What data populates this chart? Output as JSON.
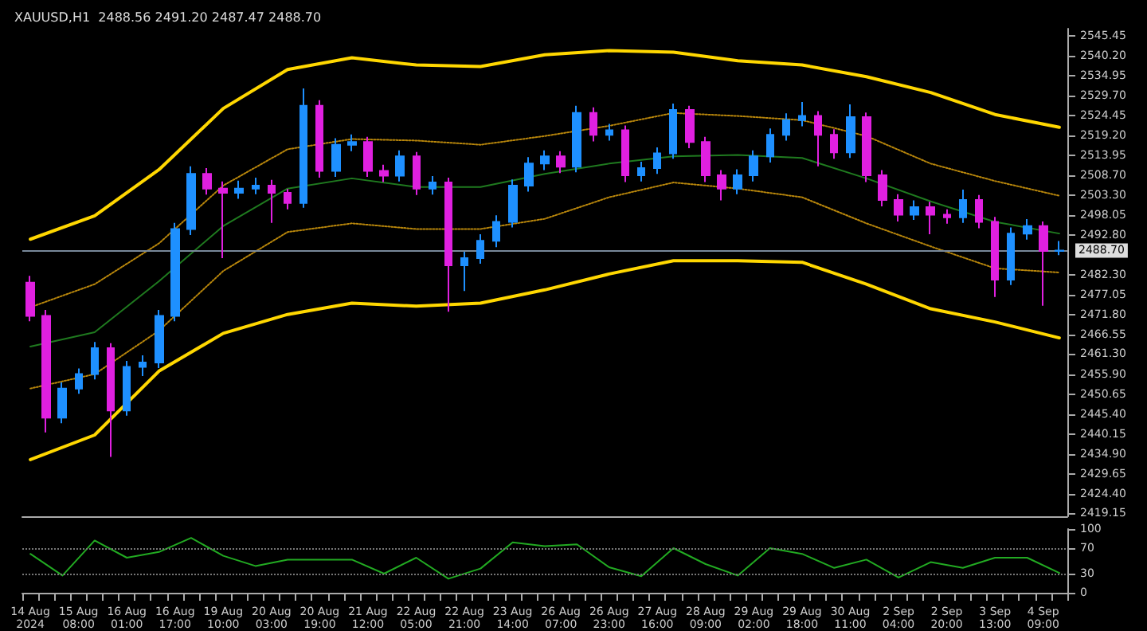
{
  "chart_data": [
    {
      "type": "candlestick",
      "title": "XAUUSD,H1  2488.56 2491.20 2487.47 2488.70",
      "categories": [
        null,
        null,
        null,
        null,
        null,
        null,
        null,
        null,
        null,
        null,
        null,
        null,
        null,
        null,
        null,
        null,
        null,
        null,
        null,
        null,
        null,
        null,
        null,
        null,
        null,
        null,
        null,
        null,
        null,
        null,
        null,
        null,
        null,
        null,
        null,
        null,
        null,
        null,
        null,
        null,
        null,
        null,
        null,
        null,
        null,
        null,
        null,
        null,
        null,
        null,
        null,
        null,
        null,
        null,
        null,
        null,
        null,
        null,
        null,
        null,
        null,
        null,
        null,
        null,
        null
      ],
      "ohlc": [
        [
          2480.2,
          2482.0,
          2470.0,
          2471.4
        ],
        [
          2471.4,
          2473.0,
          2440.6,
          2444.5
        ],
        [
          2444.5,
          2453.8,
          2443.0,
          2452.2
        ],
        [
          2452.2,
          2457.5,
          2450.8,
          2456.0
        ],
        [
          2456.0,
          2464.5,
          2454.6,
          2462.9
        ],
        [
          2462.9,
          2464.2,
          2434.1,
          2446.4
        ],
        [
          2446.4,
          2459.5,
          2445.0,
          2457.9
        ],
        [
          2457.9,
          2461.0,
          2455.5,
          2459.1
        ],
        [
          2459.1,
          2473.0,
          2457.6,
          2471.4
        ],
        [
          2471.4,
          2496.0,
          2470.0,
          2494.4
        ],
        [
          2494.4,
          2511.0,
          2492.8,
          2509.0
        ],
        [
          2509.0,
          2510.5,
          2503.5,
          2505.1
        ],
        [
          2505.1,
          2507.0,
          2486.7,
          2504.0
        ],
        [
          2504.0,
          2507.2,
          2502.4,
          2505.1
        ],
        [
          2505.1,
          2508.0,
          2503.6,
          2505.9
        ],
        [
          2505.9,
          2507.4,
          2496.0,
          2504.0
        ],
        [
          2504.0,
          2505.0,
          2499.6,
          2501.3
        ],
        [
          2501.3,
          2531.6,
          2500.0,
          2527.0
        ],
        [
          2527.0,
          2528.5,
          2508.0,
          2509.8
        ],
        [
          2509.8,
          2518.4,
          2508.2,
          2516.7
        ],
        [
          2516.7,
          2519.4,
          2515.0,
          2517.4
        ],
        [
          2517.4,
          2518.8,
          2508.2,
          2509.8
        ],
        [
          2509.8,
          2511.4,
          2506.8,
          2508.5
        ],
        [
          2508.5,
          2515.2,
          2507.0,
          2513.6
        ],
        [
          2513.6,
          2514.8,
          2503.4,
          2505.1
        ],
        [
          2505.1,
          2508.4,
          2503.5,
          2506.7
        ],
        [
          2506.7,
          2508.0,
          2472.5,
          2484.8
        ],
        [
          2484.8,
          2488.4,
          2478.0,
          2486.7
        ],
        [
          2486.7,
          2493.0,
          2485.2,
          2491.3
        ],
        [
          2491.3,
          2498.0,
          2489.6,
          2496.3
        ],
        [
          2496.3,
          2507.5,
          2494.8,
          2505.9
        ],
        [
          2505.9,
          2513.4,
          2504.3,
          2511.7
        ],
        [
          2511.7,
          2515.2,
          2510.0,
          2513.6
        ],
        [
          2513.6,
          2515.0,
          2509.2,
          2510.9
        ],
        [
          2510.9,
          2527.0,
          2509.4,
          2525.1
        ],
        [
          2525.1,
          2526.6,
          2517.6,
          2519.3
        ],
        [
          2519.3,
          2522.2,
          2517.8,
          2520.5
        ],
        [
          2520.5,
          2521.8,
          2506.8,
          2508.6
        ],
        [
          2508.6,
          2512.2,
          2507.0,
          2510.5
        ],
        [
          2510.5,
          2516.0,
          2509.0,
          2514.4
        ],
        [
          2514.4,
          2527.6,
          2513.0,
          2525.9
        ],
        [
          2525.9,
          2527.0,
          2515.8,
          2517.4
        ],
        [
          2517.4,
          2518.8,
          2506.8,
          2508.6
        ],
        [
          2508.6,
          2510.0,
          2502.0,
          2505.1
        ],
        [
          2505.1,
          2510.2,
          2503.6,
          2508.6
        ],
        [
          2508.6,
          2515.2,
          2507.0,
          2513.6
        ],
        [
          2513.6,
          2521.0,
          2512.0,
          2519.3
        ],
        [
          2519.3,
          2525.0,
          2517.8,
          2523.2
        ],
        [
          2523.2,
          2528.0,
          2521.6,
          2524.3
        ],
        [
          2524.3,
          2525.6,
          2511.0,
          2519.3
        ],
        [
          2519.3,
          2520.8,
          2513.0,
          2514.7
        ],
        [
          2514.7,
          2527.4,
          2513.2,
          2524.0
        ],
        [
          2524.0,
          2525.2,
          2506.8,
          2508.6
        ],
        [
          2508.6,
          2510.0,
          2500.4,
          2502.1
        ],
        [
          2502.1,
          2503.6,
          2496.4,
          2498.2
        ],
        [
          2498.2,
          2502.0,
          2496.8,
          2500.2
        ],
        [
          2500.2,
          2501.6,
          2493.0,
          2498.2
        ],
        [
          2498.2,
          2499.6,
          2495.8,
          2497.5
        ],
        [
          2497.5,
          2504.8,
          2496.0,
          2502.1
        ],
        [
          2502.1,
          2503.4,
          2494.6,
          2496.3
        ],
        [
          2496.3,
          2497.6,
          2476.4,
          2481.0
        ],
        [
          2481.0,
          2494.8,
          2479.6,
          2493.2
        ],
        [
          2493.2,
          2497.0,
          2491.6,
          2495.2
        ],
        [
          2495.2,
          2496.4,
          2474.1,
          2488.6
        ],
        [
          2488.6,
          2491.2,
          2487.5,
          2488.7
        ]
      ],
      "colors": [
        "#e020e0",
        "#e020e0",
        "#1e90ff",
        "#1e90ff",
        "#1e90ff",
        "#e020e0",
        "#1e90ff",
        "#1e90ff",
        "#1e90ff",
        "#1e90ff",
        "#1e90ff",
        "#e020e0",
        "#e020e0",
        "#1e90ff",
        "#1e90ff",
        "#e020e0",
        "#e020e0",
        "#1e90ff",
        "#e020e0",
        "#1e90ff",
        "#1e90ff",
        "#e020e0",
        "#e020e0",
        "#1e90ff",
        "#e020e0",
        "#1e90ff",
        "#e020e0",
        "#1e90ff",
        "#1e90ff",
        "#1e90ff",
        "#1e90ff",
        "#1e90ff",
        "#1e90ff",
        "#e020e0",
        "#1e90ff",
        "#e020e0",
        "#1e90ff",
        "#e020e0",
        "#1e90ff",
        "#1e90ff",
        "#1e90ff",
        "#e020e0",
        "#e020e0",
        "#e020e0",
        "#1e90ff",
        "#1e90ff",
        "#1e90ff",
        "#1e90ff",
        "#1e90ff",
        "#e020e0",
        "#e020e0",
        "#1e90ff",
        "#e020e0",
        "#e020e0",
        "#e020e0",
        "#1e90ff",
        "#e020e0",
        "#e020e0",
        "#1e90ff",
        "#e020e0",
        "#e020e0",
        "#1e90ff",
        "#1e90ff",
        "#e020e0",
        "#1e90ff"
      ],
      "series": [
        {
          "type": "line",
          "color": "#ffd700",
          "line_style": "solid",
          "values": [
            2491.7,
            null,
            null,
            null,
            2497.9,
            null,
            null,
            null,
            2510.1,
            null,
            null,
            null,
            2526.3,
            null,
            null,
            null,
            2536.6,
            null,
            null,
            null,
            2539.7,
            null,
            null,
            null,
            2537.8,
            null,
            null,
            null,
            2537.4,
            null,
            null,
            null,
            2540.5,
            null,
            null,
            null,
            2541.6,
            null,
            null,
            null,
            2541.2,
            null,
            null,
            null,
            2538.9,
            null,
            null,
            null,
            2537.8,
            null,
            null,
            null,
            2534.7,
            null,
            null,
            null,
            2530.5,
            null,
            null,
            null,
            2524.7,
            null,
            null,
            null,
            2521.3
          ]
        },
        {
          "type": "line",
          "color": "#ffd700",
          "line_style": "solid",
          "values": [
            2433.4,
            null,
            null,
            null,
            2439.9,
            null,
            null,
            null,
            2456.8,
            null,
            null,
            null,
            2466.8,
            null,
            null,
            null,
            2471.8,
            null,
            null,
            null,
            2474.8,
            null,
            null,
            null,
            2474.0,
            null,
            null,
            null,
            2474.8,
            null,
            null,
            null,
            2478.3,
            null,
            null,
            null,
            2482.5,
            null,
            null,
            null,
            2486.0,
            null,
            null,
            null,
            2486.0,
            null,
            null,
            null,
            2485.6,
            null,
            null,
            null,
            2479.8,
            null,
            null,
            null,
            2473.3,
            null,
            null,
            null,
            2469.8,
            null,
            null,
            null,
            2465.6
          ]
        },
        {
          "type": "line",
          "color": "#b8860b",
          "line_style": "dotted",
          "values": [
            2473.7,
            null,
            null,
            null,
            2479.8,
            null,
            null,
            null,
            2490.6,
            null,
            null,
            null,
            2505.9,
            null,
            null,
            null,
            2515.5,
            null,
            null,
            null,
            2518.2,
            null,
            null,
            null,
            2517.8,
            null,
            null,
            null,
            2516.7,
            null,
            null,
            null,
            2519.0,
            null,
            null,
            null,
            2521.7,
            null,
            null,
            null,
            2525.1,
            null,
            null,
            null,
            2524.3,
            null,
            null,
            null,
            2523.2,
            null,
            null,
            null,
            2519.0,
            null,
            null,
            null,
            2511.7,
            null,
            null,
            null,
            2507.1,
            null,
            null,
            null,
            2503.2
          ]
        },
        {
          "type": "line",
          "color": "#b8860b",
          "line_style": "dotted",
          "values": [
            2452.2,
            null,
            null,
            null,
            2456.0,
            null,
            null,
            null,
            2467.5,
            null,
            null,
            null,
            2483.3,
            null,
            null,
            null,
            2493.6,
            null,
            null,
            null,
            2495.9,
            null,
            null,
            null,
            2494.4,
            null,
            null,
            null,
            2494.4,
            null,
            null,
            null,
            2497.1,
            null,
            null,
            null,
            2502.8,
            null,
            null,
            null,
            2506.7,
            null,
            null,
            null,
            2505.1,
            null,
            null,
            null,
            2502.8,
            null,
            null,
            null,
            2495.9,
            null,
            null,
            null,
            2489.8,
            null,
            null,
            null,
            2484.0,
            null,
            null,
            null,
            2482.9
          ]
        },
        {
          "type": "line",
          "color": "#1f7a1f",
          "line_style": "solid",
          "values": [
            2463.3,
            null,
            null,
            null,
            2467.1,
            null,
            null,
            null,
            2480.6,
            null,
            null,
            null,
            2495.2,
            null,
            null,
            null,
            2505.1,
            null,
            null,
            null,
            2507.8,
            null,
            null,
            null,
            2505.5,
            null,
            null,
            null,
            2505.5,
            null,
            null,
            null,
            2509.0,
            null,
            null,
            null,
            2511.7,
            null,
            null,
            null,
            2513.6,
            null,
            null,
            null,
            2514.0,
            null,
            null,
            null,
            2513.2,
            null,
            null,
            null,
            2507.8,
            null,
            null,
            null,
            2501.7,
            null,
            null,
            null,
            2496.3,
            null,
            null,
            null,
            2493.2
          ]
        }
      ],
      "ylim": [
        2418.4,
        2547.4
      ],
      "yticks": [
        2419.15,
        {
          "value": 2424.4,
          "label": "2424.40"
        },
        2429.65,
        {
          "value": 2434.9,
          "label": "2434.90"
        },
        2440.15,
        {
          "value": 2445.4,
          "label": "2445.40"
        },
        2450.65,
        {
          "value": 2455.9,
          "label": "2455.90"
        },
        {
          "value": 2461.3,
          "label": "2461.30"
        },
        2466.55,
        {
          "value": 2471.8,
          "label": "2471.80"
        },
        2477.05,
        {
          "value": 2482.3,
          "label": "2482.30"
        },
        {
          "value": 2492.8,
          "label": "2492.80"
        },
        2498.05,
        {
          "value": 2503.3,
          "label": "2503.30"
        },
        {
          "value": 2508.7,
          "label": "2508.70"
        },
        2513.95,
        {
          "value": 2519.2,
          "label": "2519.20"
        },
        2524.45,
        {
          "value": 2529.7,
          "label": "2529.70"
        },
        2534.95,
        {
          "value": 2540.2,
          "label": "2540.20"
        },
        2545.45
      ],
      "ref_lines": [
        {
          "axis": "y",
          "value": 2488.7,
          "label": "2488.70",
          "color": "#778899"
        }
      ],
      "tick_labels": "y",
      "grid": false,
      "marker": "none"
    },
    {
      "type": "line",
      "categories": [
        "14 Aug 2024",
        null,
        null,
        "15 Aug 08:00",
        null,
        null,
        "16 Aug 01:00",
        null,
        null,
        "16 Aug 17:00",
        null,
        null,
        "19 Aug 10:00",
        null,
        null,
        "20 Aug 03:00",
        null,
        null,
        "20 Aug 19:00",
        null,
        null,
        "21 Aug 12:00",
        null,
        null,
        "22 Aug 05:00",
        null,
        null,
        "22 Aug 21:00",
        null,
        null,
        "23 Aug 14:00",
        null,
        null,
        "26 Aug 07:00",
        null,
        null,
        "26 Aug 23:00",
        null,
        null,
        "27 Aug 16:00",
        null,
        null,
        "28 Aug 09:00",
        null,
        null,
        "29 Aug 02:00",
        null,
        null,
        "29 Aug 18:00",
        null,
        null,
        "30 Aug 11:00",
        null,
        null,
        "2 Sep 04:00",
        null,
        null,
        "2 Sep 20:00",
        null,
        null,
        "3 Sep 13:00",
        null,
        null,
        "4 Sep 09:00",
        null
      ],
      "series": [
        {
          "color": "#22aa22",
          "values": [
            61,
            null,
            27,
            null,
            82,
            null,
            55,
            null,
            64,
            null,
            86,
            null,
            58,
            null,
            42,
            null,
            52,
            null,
            52,
            null,
            52,
            null,
            30,
            null,
            55,
            null,
            22,
            null,
            38,
            null,
            79,
            null,
            73,
            null,
            76,
            null,
            40,
            null,
            26,
            null,
            70,
            null,
            45,
            null,
            27,
            null,
            70,
            null,
            61,
            null,
            39,
            null,
            52,
            null,
            24,
            null,
            48,
            null,
            39,
            null,
            55,
            null,
            55,
            null,
            31
          ]
        }
      ],
      "ylim": [
        0,
        100
      ],
      "yticks": [
        0,
        30,
        70,
        100
      ],
      "ref_lines": [
        {
          "axis": "y",
          "value": 30,
          "color": "#777777",
          "line_style": "dotted"
        },
        {
          "axis": "y",
          "value": 70,
          "color": "#777777",
          "line_style": "dotted"
        }
      ],
      "grid": false,
      "marker": "none",
      "line_style": "solid"
    }
  ]
}
